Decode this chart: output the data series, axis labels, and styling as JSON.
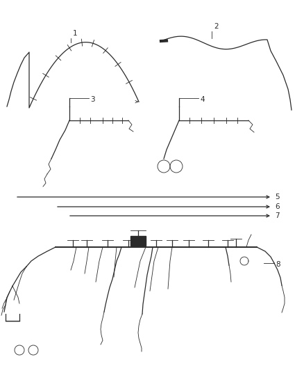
{
  "bg_color": "#ffffff",
  "line_color": "#2a2a2a",
  "label_color": "#222222",
  "label_fontsize": 7.5,
  "fig_width": 4.38,
  "fig_height": 5.33,
  "dpi": 100,
  "layout": {
    "item1_region": [
      0.01,
      0.78,
      0.48,
      0.97
    ],
    "item2_region": [
      0.48,
      0.78,
      0.99,
      0.97
    ],
    "item3_region": [
      0.1,
      0.58,
      0.45,
      0.78
    ],
    "item4_region": [
      0.48,
      0.58,
      0.85,
      0.78
    ],
    "lines_region": [
      0.05,
      0.45,
      0.98,
      0.57
    ],
    "harness_region": [
      0.05,
      0.1,
      0.95,
      0.45
    ],
    "grommets_region": [
      0.01,
      0.02,
      0.2,
      0.1
    ]
  }
}
